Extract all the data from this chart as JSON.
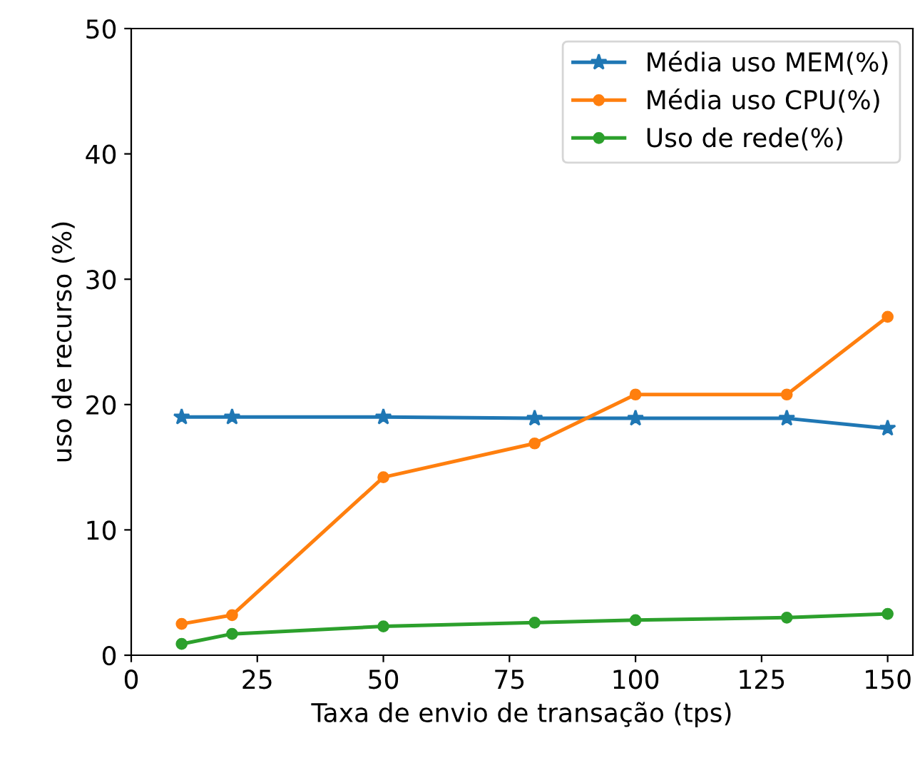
{
  "chart_data": {
    "type": "line",
    "xlabel": "Taxa de envio de transação (tps)",
    "ylabel": "uso de recurso (%)",
    "x": [
      10,
      20,
      50,
      80,
      100,
      130,
      150
    ],
    "series": [
      {
        "name": "Média uso MEM(%)",
        "color": "#1f77b4",
        "marker": "star",
        "values": [
          19.0,
          19.0,
          19.0,
          18.9,
          18.9,
          18.9,
          18.1
        ]
      },
      {
        "name": "Média uso CPU(%)",
        "color": "#ff7f0e",
        "marker": "circle",
        "values": [
          2.5,
          3.2,
          14.2,
          16.9,
          20.8,
          20.8,
          27.0
        ]
      },
      {
        "name": "Uso de rede(%)",
        "color": "#2ca02c",
        "marker": "circle",
        "values": [
          0.9,
          1.7,
          2.3,
          2.6,
          2.8,
          3.0,
          3.3
        ]
      }
    ],
    "xlim": [
      0,
      155
    ],
    "xticks": [
      0,
      25,
      50,
      75,
      100,
      125,
      150
    ],
    "ylim": [
      0,
      50
    ],
    "yticks": [
      0,
      10,
      20,
      30,
      40,
      50
    ],
    "grid": false,
    "legend": "top right",
    "line_style": "solid"
  }
}
